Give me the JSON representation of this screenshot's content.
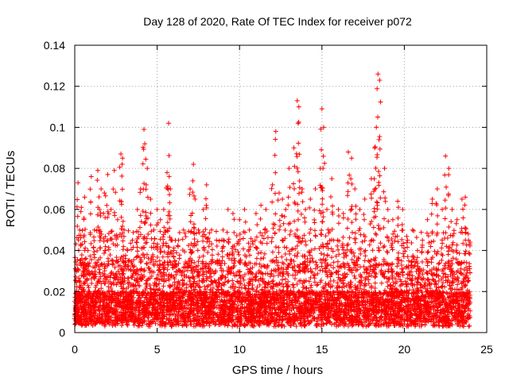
{
  "chart_data": {
    "type": "scatter",
    "title": "Day 128 of 2020, Rate Of TEC Index for receiver p072",
    "xlabel": "GPS time / hours",
    "ylabel": "ROTI / TECUs",
    "xlim": [
      0,
      25
    ],
    "ylim": [
      0,
      0.14
    ],
    "xticks": [
      0,
      5,
      10,
      15,
      20,
      25
    ],
    "xtick_labels": [
      "0",
      "5",
      "10",
      "15",
      "20",
      "25"
    ],
    "yticks": [
      0,
      0.02,
      0.04,
      0.06,
      0.08,
      0.1,
      0.12,
      0.14
    ],
    "ytick_labels": [
      "0",
      "0.02",
      "0.04",
      "0.06",
      "0.08",
      "0.1",
      "0.12",
      "0.14"
    ],
    "grid": true,
    "marker": "+",
    "color": "#ff0000",
    "series": [
      {
        "name": "ROTI",
        "x": [
          0.05,
          0.1,
          0.2,
          0.3,
          0.4,
          0.5,
          0.6,
          0.8,
          1.0,
          1.2,
          1.4,
          1.5,
          1.6,
          1.8,
          2.0,
          2.2,
          2.4,
          2.6,
          2.8,
          2.9,
          3.0,
          3.2,
          3.5,
          3.8,
          4.0,
          4.2,
          4.25,
          4.4,
          4.6,
          4.8,
          5.0,
          5.2,
          5.4,
          5.6,
          5.7,
          5.8,
          6.0,
          6.3,
          6.6,
          7.0,
          7.2,
          7.3,
          7.5,
          7.8,
          8.0,
          8.3,
          8.6,
          9.0,
          9.3,
          9.6,
          10.0,
          10.3,
          10.6,
          11.0,
          11.3,
          11.6,
          12.0,
          12.2,
          12.4,
          12.6,
          12.8,
          13.0,
          13.3,
          13.5,
          13.6,
          13.8,
          14.0,
          14.3,
          14.6,
          14.9,
          15.0,
          15.1,
          15.3,
          15.6,
          16.0,
          16.3,
          16.6,
          16.8,
          17.0,
          17.3,
          17.6,
          18.0,
          18.2,
          18.3,
          18.4,
          18.5,
          18.8,
          19.0,
          19.3,
          19.6,
          19.9,
          20.2,
          20.5,
          20.8,
          21.1,
          21.4,
          21.7,
          22.0,
          22.3,
          22.5,
          22.7,
          22.9,
          23.2,
          23.5,
          23.7,
          23.9
        ],
        "y": [
          0.012,
          0.02,
          0.073,
          0.05,
          0.061,
          0.03,
          0.066,
          0.04,
          0.076,
          0.05,
          0.079,
          0.06,
          0.07,
          0.068,
          0.077,
          0.06,
          0.079,
          0.055,
          0.087,
          0.085,
          0.05,
          0.04,
          0.045,
          0.06,
          0.07,
          0.099,
          0.092,
          0.08,
          0.065,
          0.05,
          0.06,
          0.055,
          0.06,
          0.078,
          0.102,
          0.07,
          0.04,
          0.045,
          0.05,
          0.07,
          0.082,
          0.065,
          0.05,
          0.06,
          0.072,
          0.05,
          0.045,
          0.05,
          0.06,
          0.058,
          0.055,
          0.06,
          0.05,
          0.058,
          0.062,
          0.06,
          0.072,
          0.098,
          0.068,
          0.065,
          0.06,
          0.08,
          0.09,
          0.113,
          0.11,
          0.07,
          0.06,
          0.065,
          0.07,
          0.08,
          0.109,
          0.1,
          0.06,
          0.075,
          0.06,
          0.058,
          0.088,
          0.085,
          0.07,
          0.06,
          0.065,
          0.075,
          0.09,
          0.1,
          0.126,
          0.123,
          0.08,
          0.06,
          0.055,
          0.064,
          0.06,
          0.045,
          0.05,
          0.04,
          0.045,
          0.055,
          0.065,
          0.07,
          0.06,
          0.086,
          0.08,
          0.06,
          0.055,
          0.065,
          0.066,
          0.045
        ]
      }
    ]
  }
}
